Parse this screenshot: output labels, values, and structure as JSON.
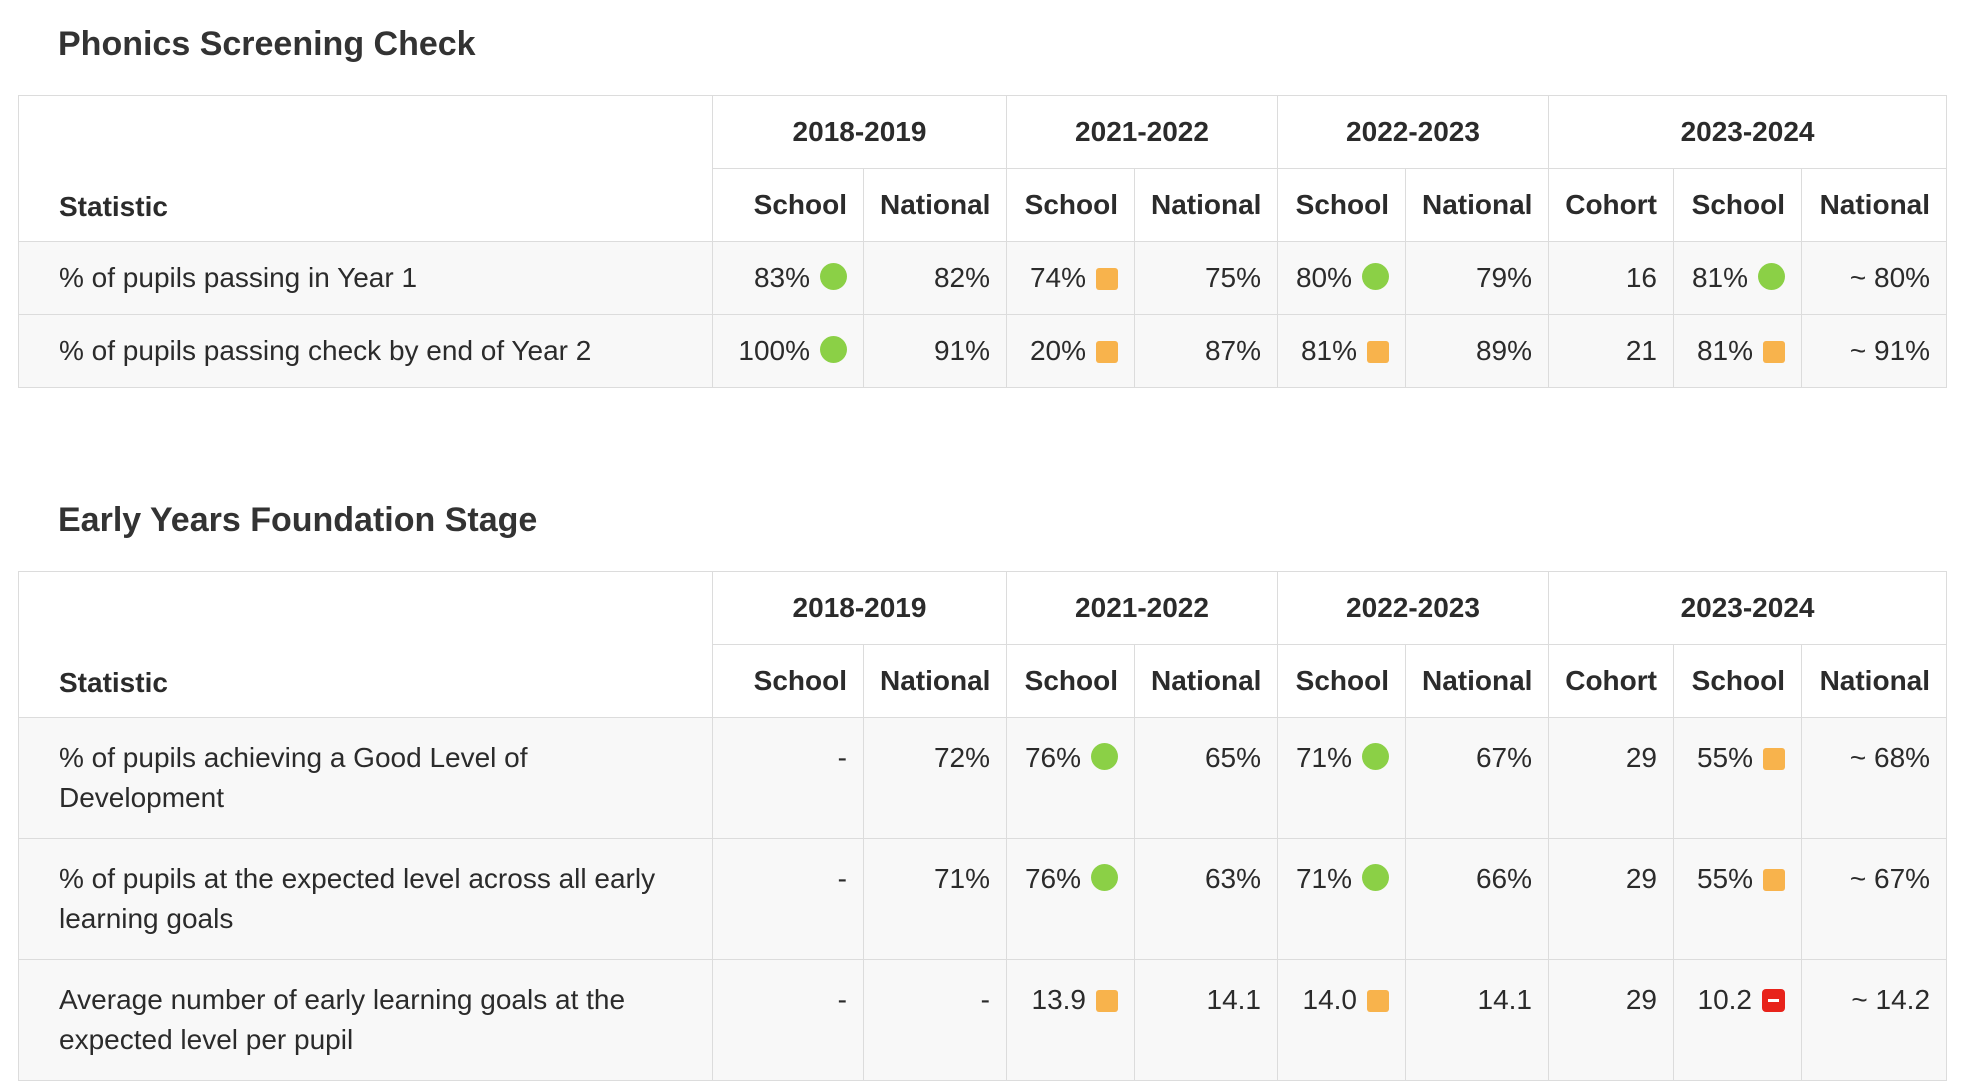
{
  "phonics": {
    "title": "Phonics Screening Check",
    "years": [
      "2018-2019",
      "2021-2022",
      "2022-2023",
      "2023-2024"
    ],
    "header": {
      "statistic": "Statistic",
      "sub": [
        "School",
        "National",
        "School",
        "National",
        "School",
        "National",
        "Cohort",
        "School",
        "National"
      ]
    },
    "rows": [
      {
        "label": "% of pupils passing in Year 1",
        "cells": [
          {
            "text": "83%",
            "ind": "green"
          },
          {
            "text": "82%"
          },
          {
            "text": "74%",
            "ind": "amber"
          },
          {
            "text": "75%"
          },
          {
            "text": "80%",
            "ind": "green"
          },
          {
            "text": "79%"
          },
          {
            "text": "16"
          },
          {
            "text": "81%",
            "ind": "green"
          },
          {
            "text": "~ 80%"
          }
        ]
      },
      {
        "label": "% of pupils passing check by end of Year 2",
        "cells": [
          {
            "text": "100%",
            "ind": "green"
          },
          {
            "text": "91%"
          },
          {
            "text": "20%",
            "ind": "amber"
          },
          {
            "text": "87%"
          },
          {
            "text": "81%",
            "ind": "amber"
          },
          {
            "text": "89%"
          },
          {
            "text": "21"
          },
          {
            "text": "81%",
            "ind": "amber"
          },
          {
            "text": "~ 91%"
          }
        ]
      }
    ]
  },
  "eyfs": {
    "title": "Early Years Foundation Stage",
    "years": [
      "2018-2019",
      "2021-2022",
      "2022-2023",
      "2023-2024"
    ],
    "header": {
      "statistic": "Statistic",
      "sub": [
        "School",
        "National",
        "School",
        "National",
        "School",
        "National",
        "Cohort",
        "School",
        "National"
      ]
    },
    "rows": [
      {
        "label": "% of pupils achieving a Good Level of Development",
        "cells": [
          {
            "text": "-"
          },
          {
            "text": "72%"
          },
          {
            "text": "76%",
            "ind": "green"
          },
          {
            "text": "65%"
          },
          {
            "text": "71%",
            "ind": "green"
          },
          {
            "text": "67%"
          },
          {
            "text": "29"
          },
          {
            "text": "55%",
            "ind": "amber"
          },
          {
            "text": "~ 68%"
          }
        ]
      },
      {
        "label": "% of pupils at the expected level across all early learning goals",
        "cells": [
          {
            "text": "-"
          },
          {
            "text": "71%"
          },
          {
            "text": "76%",
            "ind": "green"
          },
          {
            "text": "63%"
          },
          {
            "text": "71%",
            "ind": "green"
          },
          {
            "text": "66%"
          },
          {
            "text": "29"
          },
          {
            "text": "55%",
            "ind": "amber"
          },
          {
            "text": "~ 67%"
          }
        ]
      },
      {
        "label": "Average number of early learning goals at the expected level per pupil",
        "cells": [
          {
            "text": "-"
          },
          {
            "text": "-"
          },
          {
            "text": "13.9",
            "ind": "amber"
          },
          {
            "text": "14.1"
          },
          {
            "text": "14.0",
            "ind": "amber"
          },
          {
            "text": "14.1"
          },
          {
            "text": "29"
          },
          {
            "text": "10.2",
            "ind": "red"
          },
          {
            "text": "~ 14.2"
          }
        ]
      }
    ]
  },
  "indicator_colors": {
    "green": "#8bd046",
    "amber": "#f8b34c",
    "red": "#e8231b"
  }
}
